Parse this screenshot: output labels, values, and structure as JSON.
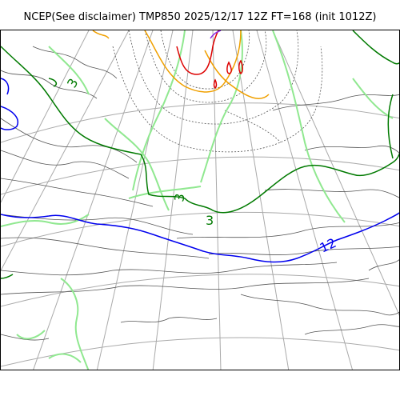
{
  "map": {
    "title": "NCEP(See disclaimer) TMP850 2025/12/17 12Z FT=168 (init 1012Z)",
    "colors": {
      "isoline_3": "#007a00",
      "isoline_12": "#0000ee",
      "light_green": "#90e890",
      "orange": "#f0a000",
      "red": "#dd0000",
      "purple": "#8a2be2",
      "coastline": "#000000",
      "graticule": "#aaaaaa"
    },
    "contour_labels": [
      "3",
      "3",
      "12",
      "3",
      "3"
    ]
  }
}
